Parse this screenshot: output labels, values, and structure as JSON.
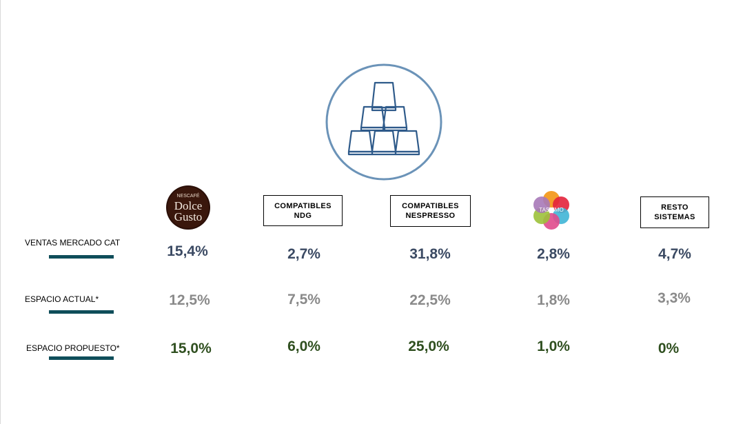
{
  "logos": {
    "dolce_gusto": {
      "line1": "NESCAFÉ",
      "line2": "Dolce",
      "line3": "Gusto"
    },
    "tassimo": {
      "text": "TASSIMO"
    }
  },
  "brands": [
    {
      "key": "dolce_gusto",
      "kind": "logo"
    },
    {
      "key": "compatibles_ndg",
      "kind": "box",
      "label": "COMPATIBLES\nNDG"
    },
    {
      "key": "compatibles_nespresso",
      "kind": "box",
      "label": "COMPATIBLES\nNESPRESSO"
    },
    {
      "key": "tassimo",
      "kind": "logo"
    },
    {
      "key": "resto_sistemas",
      "kind": "box",
      "label": "RESTO\nSISTEMAS"
    }
  ],
  "rows": [
    {
      "label": "VENTAS MERCADO CAT",
      "values": [
        "15,4%",
        "2,7%",
        "31,8%",
        "2,8%",
        "4,7%"
      ]
    },
    {
      "label": "ESPACIO ACTUAL*",
      "values": [
        "12,5%",
        "7,5%",
        "22,5%",
        "1,8%",
        "3,3%"
      ]
    },
    {
      "label": "ESPACIO PROPUESTO*",
      "values": [
        "15,0%",
        "6,0%",
        "25,0%",
        "1,0%",
        "0%"
      ]
    }
  ],
  "colors": {
    "icon_circle": "#6b93b8",
    "icon_stroke": "#2e5a8a",
    "underline": "#0f4e5a",
    "ventas": "#3b4a63",
    "actual": "#8a8a8a",
    "propuesto": "#2f4f1f"
  }
}
